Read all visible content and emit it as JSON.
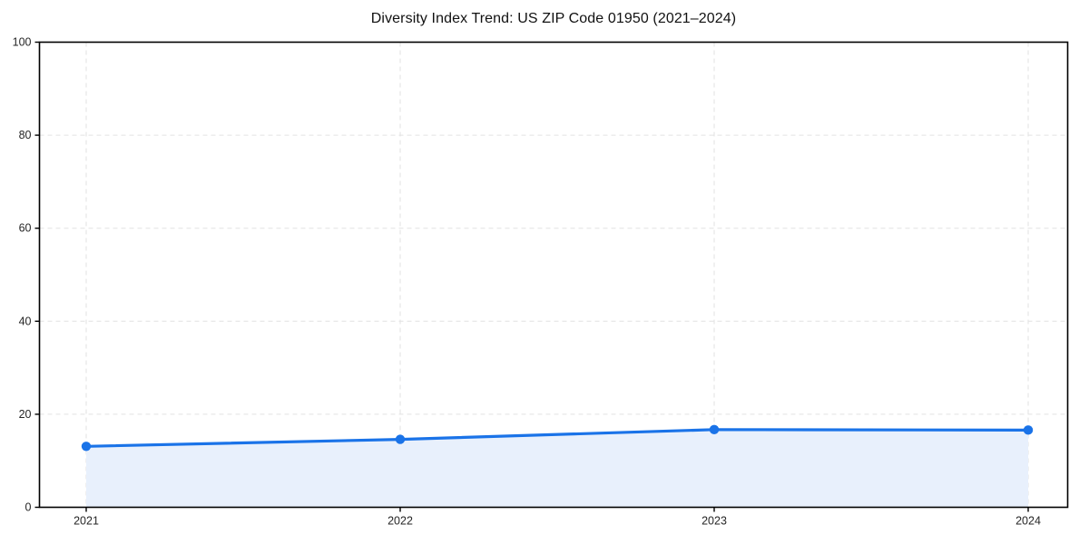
{
  "chart_data": {
    "type": "line",
    "title": "Diversity Index Trend: US ZIP Code 01950 (2021–2024)",
    "categories": [
      "2021",
      "2022",
      "2023",
      "2024"
    ],
    "series": [
      {
        "name": "Diversity Index",
        "values": [
          13.1,
          14.6,
          16.7,
          16.6
        ]
      }
    ],
    "xlabel": "",
    "ylabel": "",
    "ylim": [
      0,
      100
    ],
    "y_ticks": [
      0,
      20,
      40,
      60,
      80,
      100
    ],
    "grid": true,
    "grid_style": "dashed",
    "legend_position": "none",
    "area_fill": true,
    "markers": true,
    "colors": {
      "line": "#1a73e8",
      "marker": "#1a73e8",
      "area": "#e8f0fc",
      "grid": "#e2e2e2",
      "axis": "#000000",
      "text": "#262626",
      "background": "#ffffff"
    }
  }
}
